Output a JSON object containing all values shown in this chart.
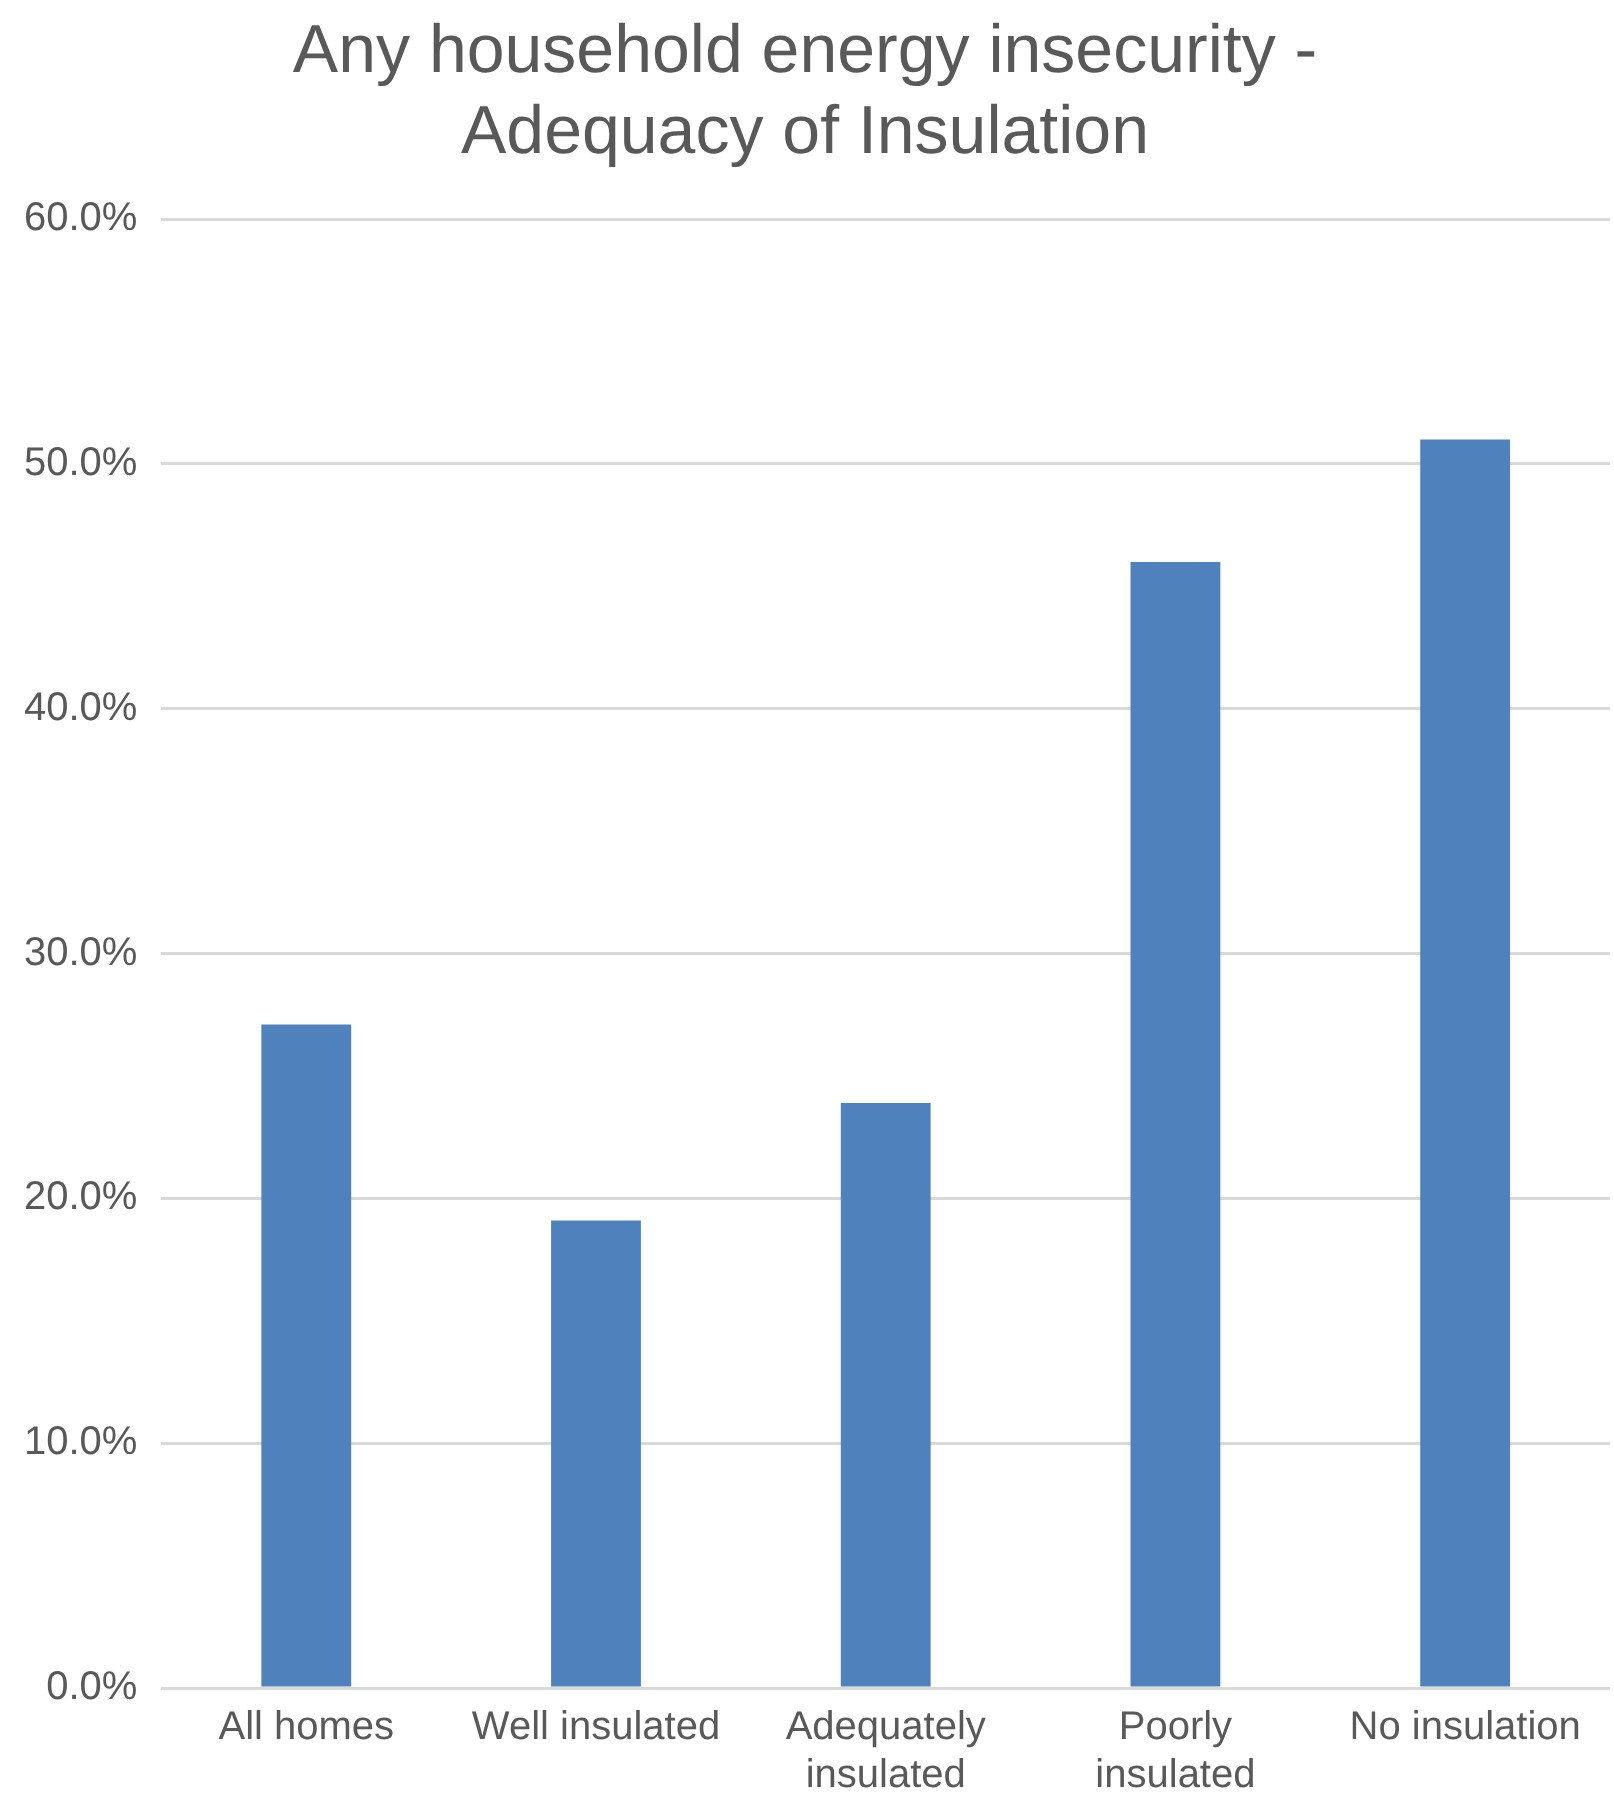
{
  "chart_data": {
    "type": "bar",
    "title": "Any household energy insecurity - Adequacy of Insulation",
    "categories": [
      "All homes",
      "Well insulated",
      "Adequately insulated",
      "Poorly insulated",
      "No insulation"
    ],
    "values": [
      27.1,
      19.1,
      23.9,
      46.0,
      51.0
    ],
    "color": "#4f81bd",
    "ylim": [
      0,
      60
    ],
    "yticks": [
      {
        "value": 0,
        "label": "0.0%"
      },
      {
        "value": 10,
        "label": "10.0%"
      },
      {
        "value": 20,
        "label": "20.0%"
      },
      {
        "value": 30,
        "label": "30.0%"
      },
      {
        "value": 40,
        "label": "40.0%"
      },
      {
        "value": 50,
        "label": "50.0%"
      },
      {
        "value": 60,
        "label": "60.0%"
      }
    ],
    "grid": "y",
    "legend": false
  }
}
